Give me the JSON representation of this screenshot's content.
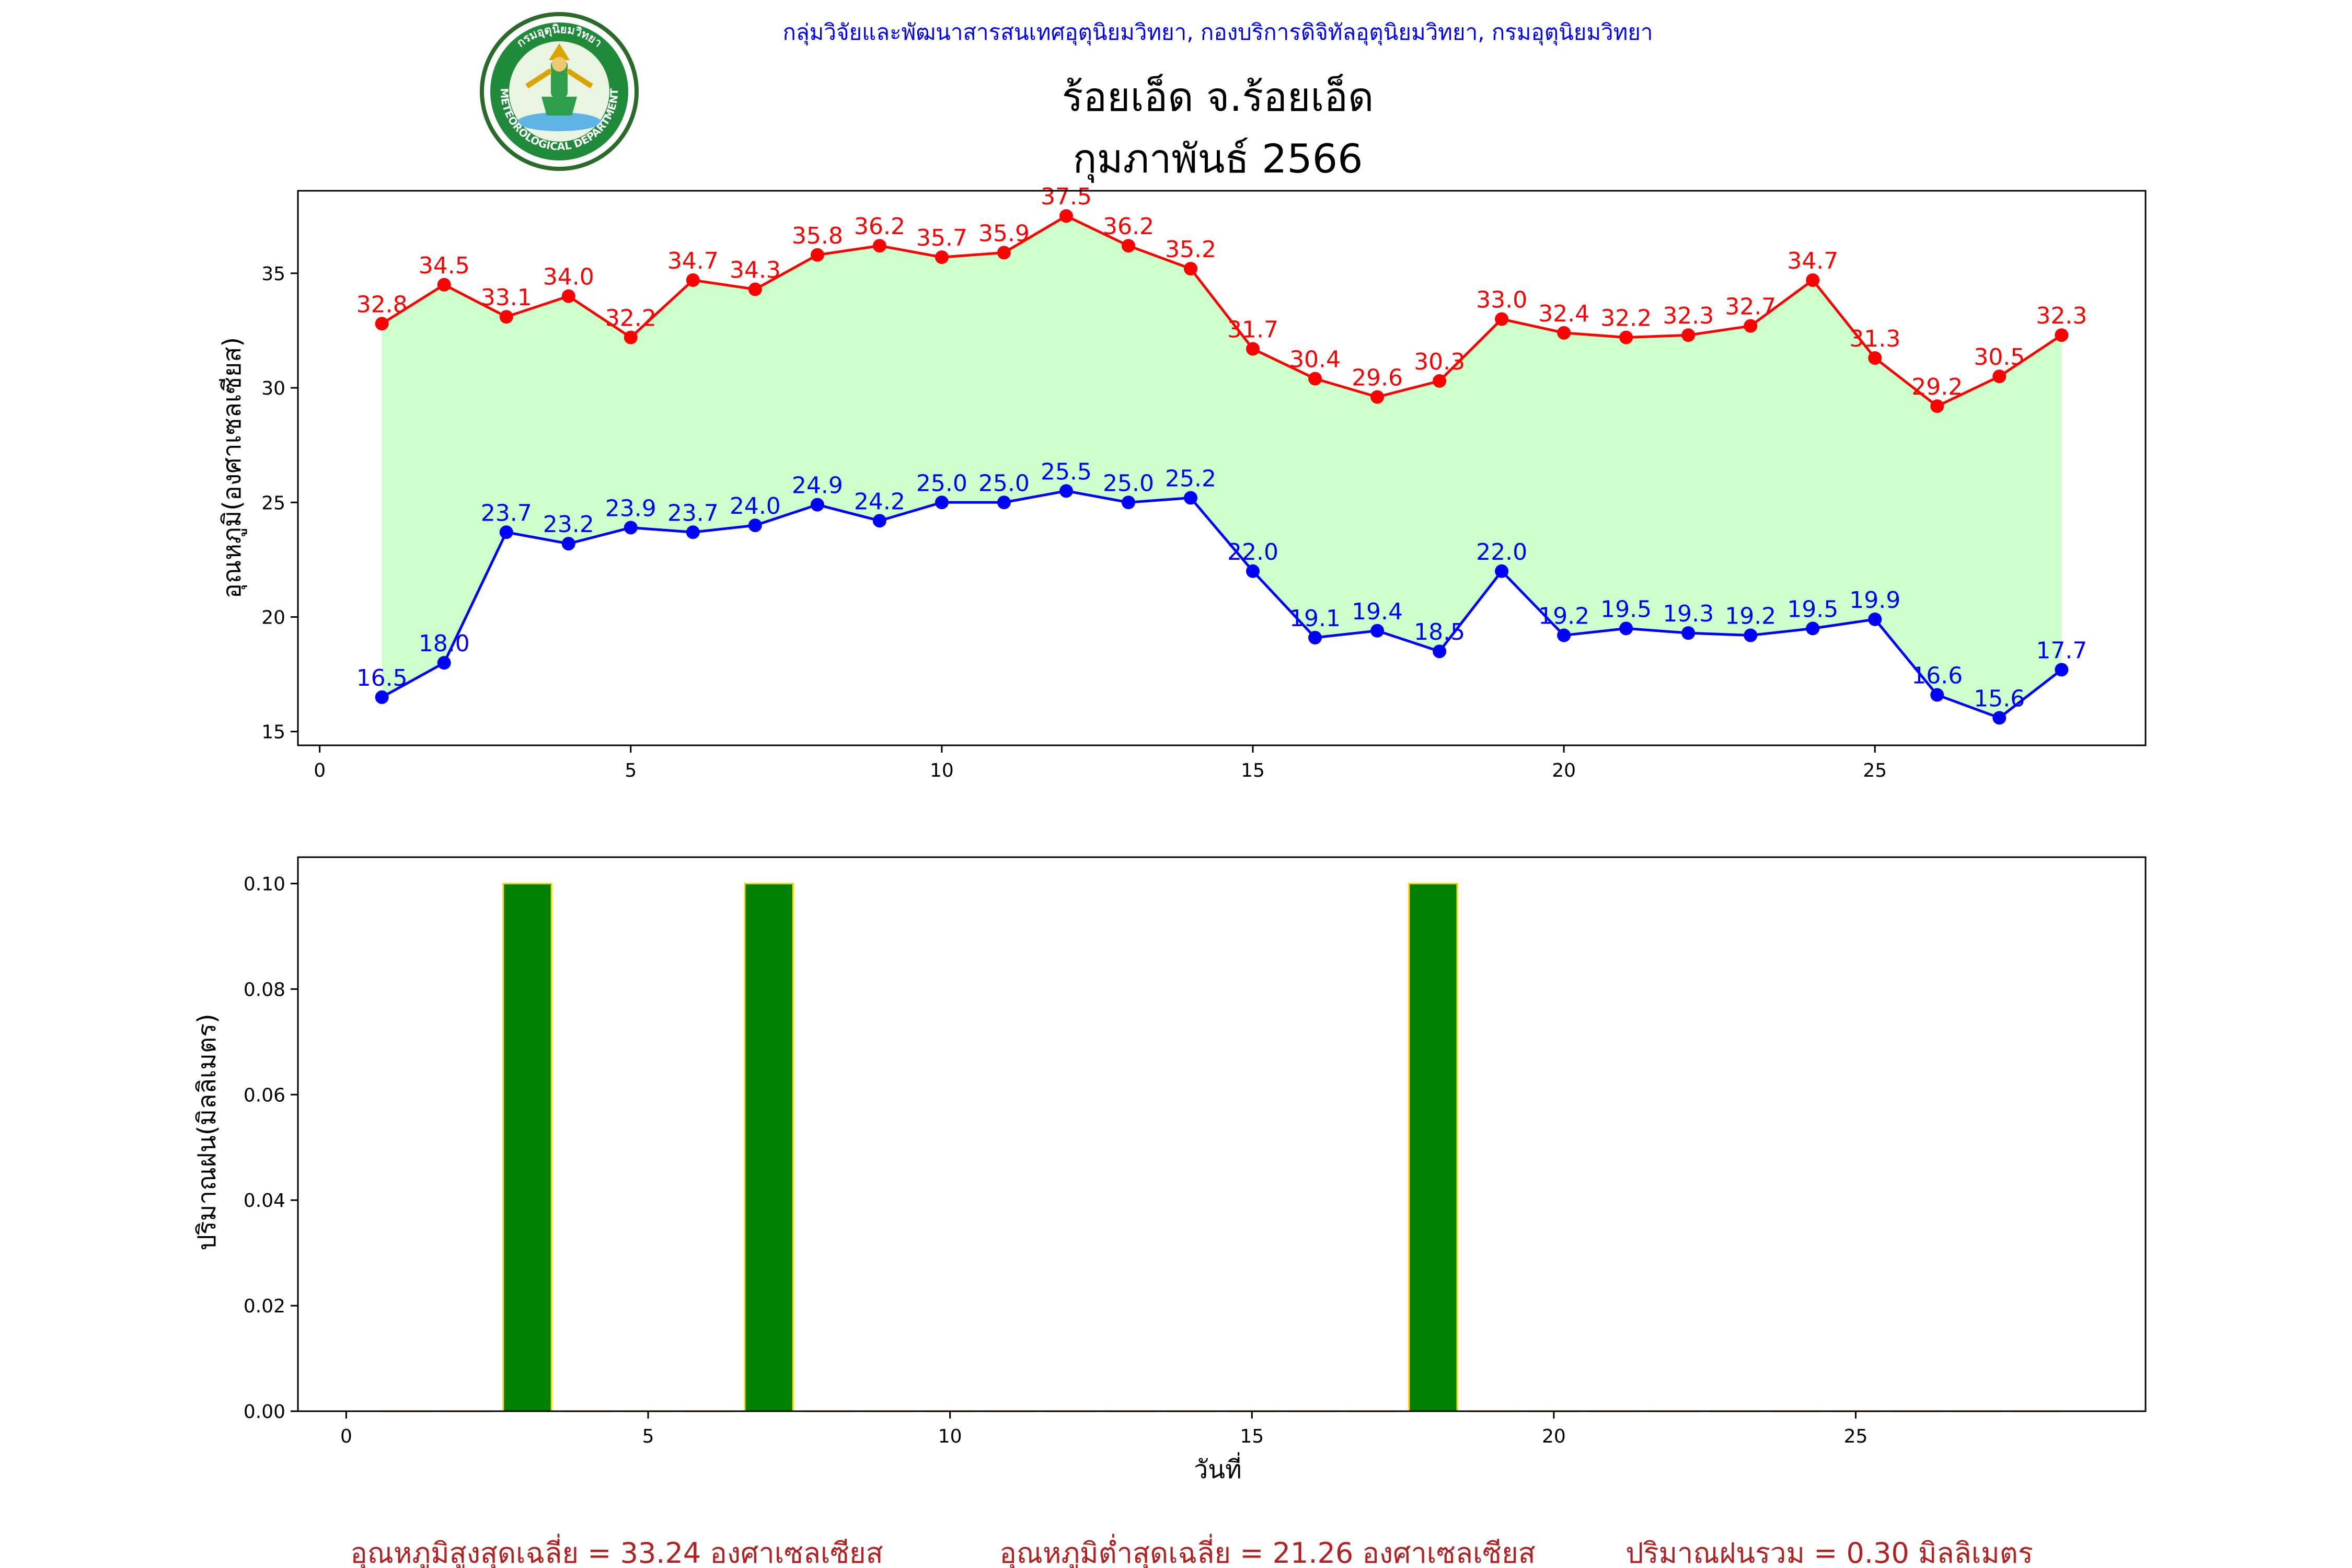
{
  "header": {
    "department_line": "กลุ่มวิจัยและพัฒนาสารสนเทศอุตุนิยมวิทยา, กองบริการดิจิทัลอุตุนิยมวิทยา, กรมอุตุนิยมวิทยา",
    "station_title": "ร้อยเอ็ด จ.ร้อยเอ็ด",
    "period_title": "กุมภาพันธ์ 2566",
    "logo_text": "METEOROLOGICAL DEPARTMENT",
    "logo_text_top": "กรมอุตุนิยมวิทยา"
  },
  "colors": {
    "header_text": "#0000ff",
    "tmax": "#ff0000",
    "tmin": "#0000ff",
    "range_fill": "#ccffcc",
    "rain_bar": "#008000",
    "rain_edge": "#ffd700",
    "footer": "#b22222"
  },
  "chart_data": [
    {
      "type": "line",
      "ylabel": "อุณหภูมิ(องศาเซลเซียส)",
      "xlabel": "",
      "xlim": [
        -0.35,
        29.35
      ],
      "ylim": [
        14.4,
        38.6
      ],
      "xticks": [
        0,
        5,
        10,
        15,
        20,
        25
      ],
      "yticks": [
        15,
        20,
        25,
        30,
        35
      ],
      "grid": false,
      "fill_between": true,
      "x": [
        1,
        2,
        3,
        4,
        5,
        6,
        7,
        8,
        9,
        10,
        11,
        12,
        13,
        14,
        15,
        16,
        17,
        18,
        19,
        20,
        21,
        22,
        23,
        24,
        25,
        26,
        27,
        28
      ],
      "series": [
        {
          "key": "tmax",
          "values": [
            32.8,
            34.5,
            33.1,
            34.0,
            32.2,
            34.7,
            34.3,
            35.8,
            36.2,
            35.7,
            35.9,
            37.5,
            36.2,
            35.2,
            31.7,
            30.4,
            29.6,
            30.3,
            33.0,
            32.4,
            32.2,
            32.3,
            32.7,
            34.7,
            31.3,
            29.2,
            30.5,
            32.3
          ]
        },
        {
          "key": "tmin",
          "values": [
            16.5,
            18.0,
            23.7,
            23.2,
            23.9,
            23.7,
            24.0,
            24.9,
            24.2,
            25.0,
            25.0,
            25.5,
            25.0,
            25.2,
            22.0,
            19.1,
            19.4,
            18.5,
            22.0,
            19.2,
            19.5,
            19.3,
            19.2,
            19.5,
            19.9,
            16.6,
            15.6,
            17.7
          ]
        }
      ]
    },
    {
      "type": "bar",
      "ylabel": "ปริมาณฝน(มิลลิเมตร)",
      "xlabel": "วันที่",
      "xlim": [
        -0.8,
        29.8
      ],
      "ylim": [
        0,
        0.105
      ],
      "xticks": [
        0,
        5,
        10,
        15,
        20,
        25
      ],
      "yticks": [
        0.0,
        0.02,
        0.04,
        0.06,
        0.08,
        0.1
      ],
      "grid": false,
      "x": [
        1,
        2,
        3,
        4,
        5,
        6,
        7,
        8,
        9,
        10,
        11,
        12,
        13,
        14,
        15,
        16,
        17,
        18,
        19,
        20,
        21,
        22,
        23,
        24,
        25,
        26,
        27,
        28
      ],
      "values": [
        0,
        0,
        0.1,
        0,
        0,
        0,
        0.1,
        0,
        0,
        0,
        0,
        0,
        0,
        0,
        0,
        0,
        0,
        0.1,
        0,
        0,
        0,
        0,
        0,
        0,
        0,
        0,
        0,
        0
      ]
    }
  ],
  "footer": {
    "avg_max": "อุณหภูมิสูงสุดเฉลี่ย = 33.24 องศาเซลเซียส",
    "avg_min": "อุณหภูมิต่ำสุดเฉลี่ย = 21.26 องศาเซลเซียส",
    "total_rain": "ปริมาณฝนรวม = 0.30 มิลลิเมตร"
  }
}
